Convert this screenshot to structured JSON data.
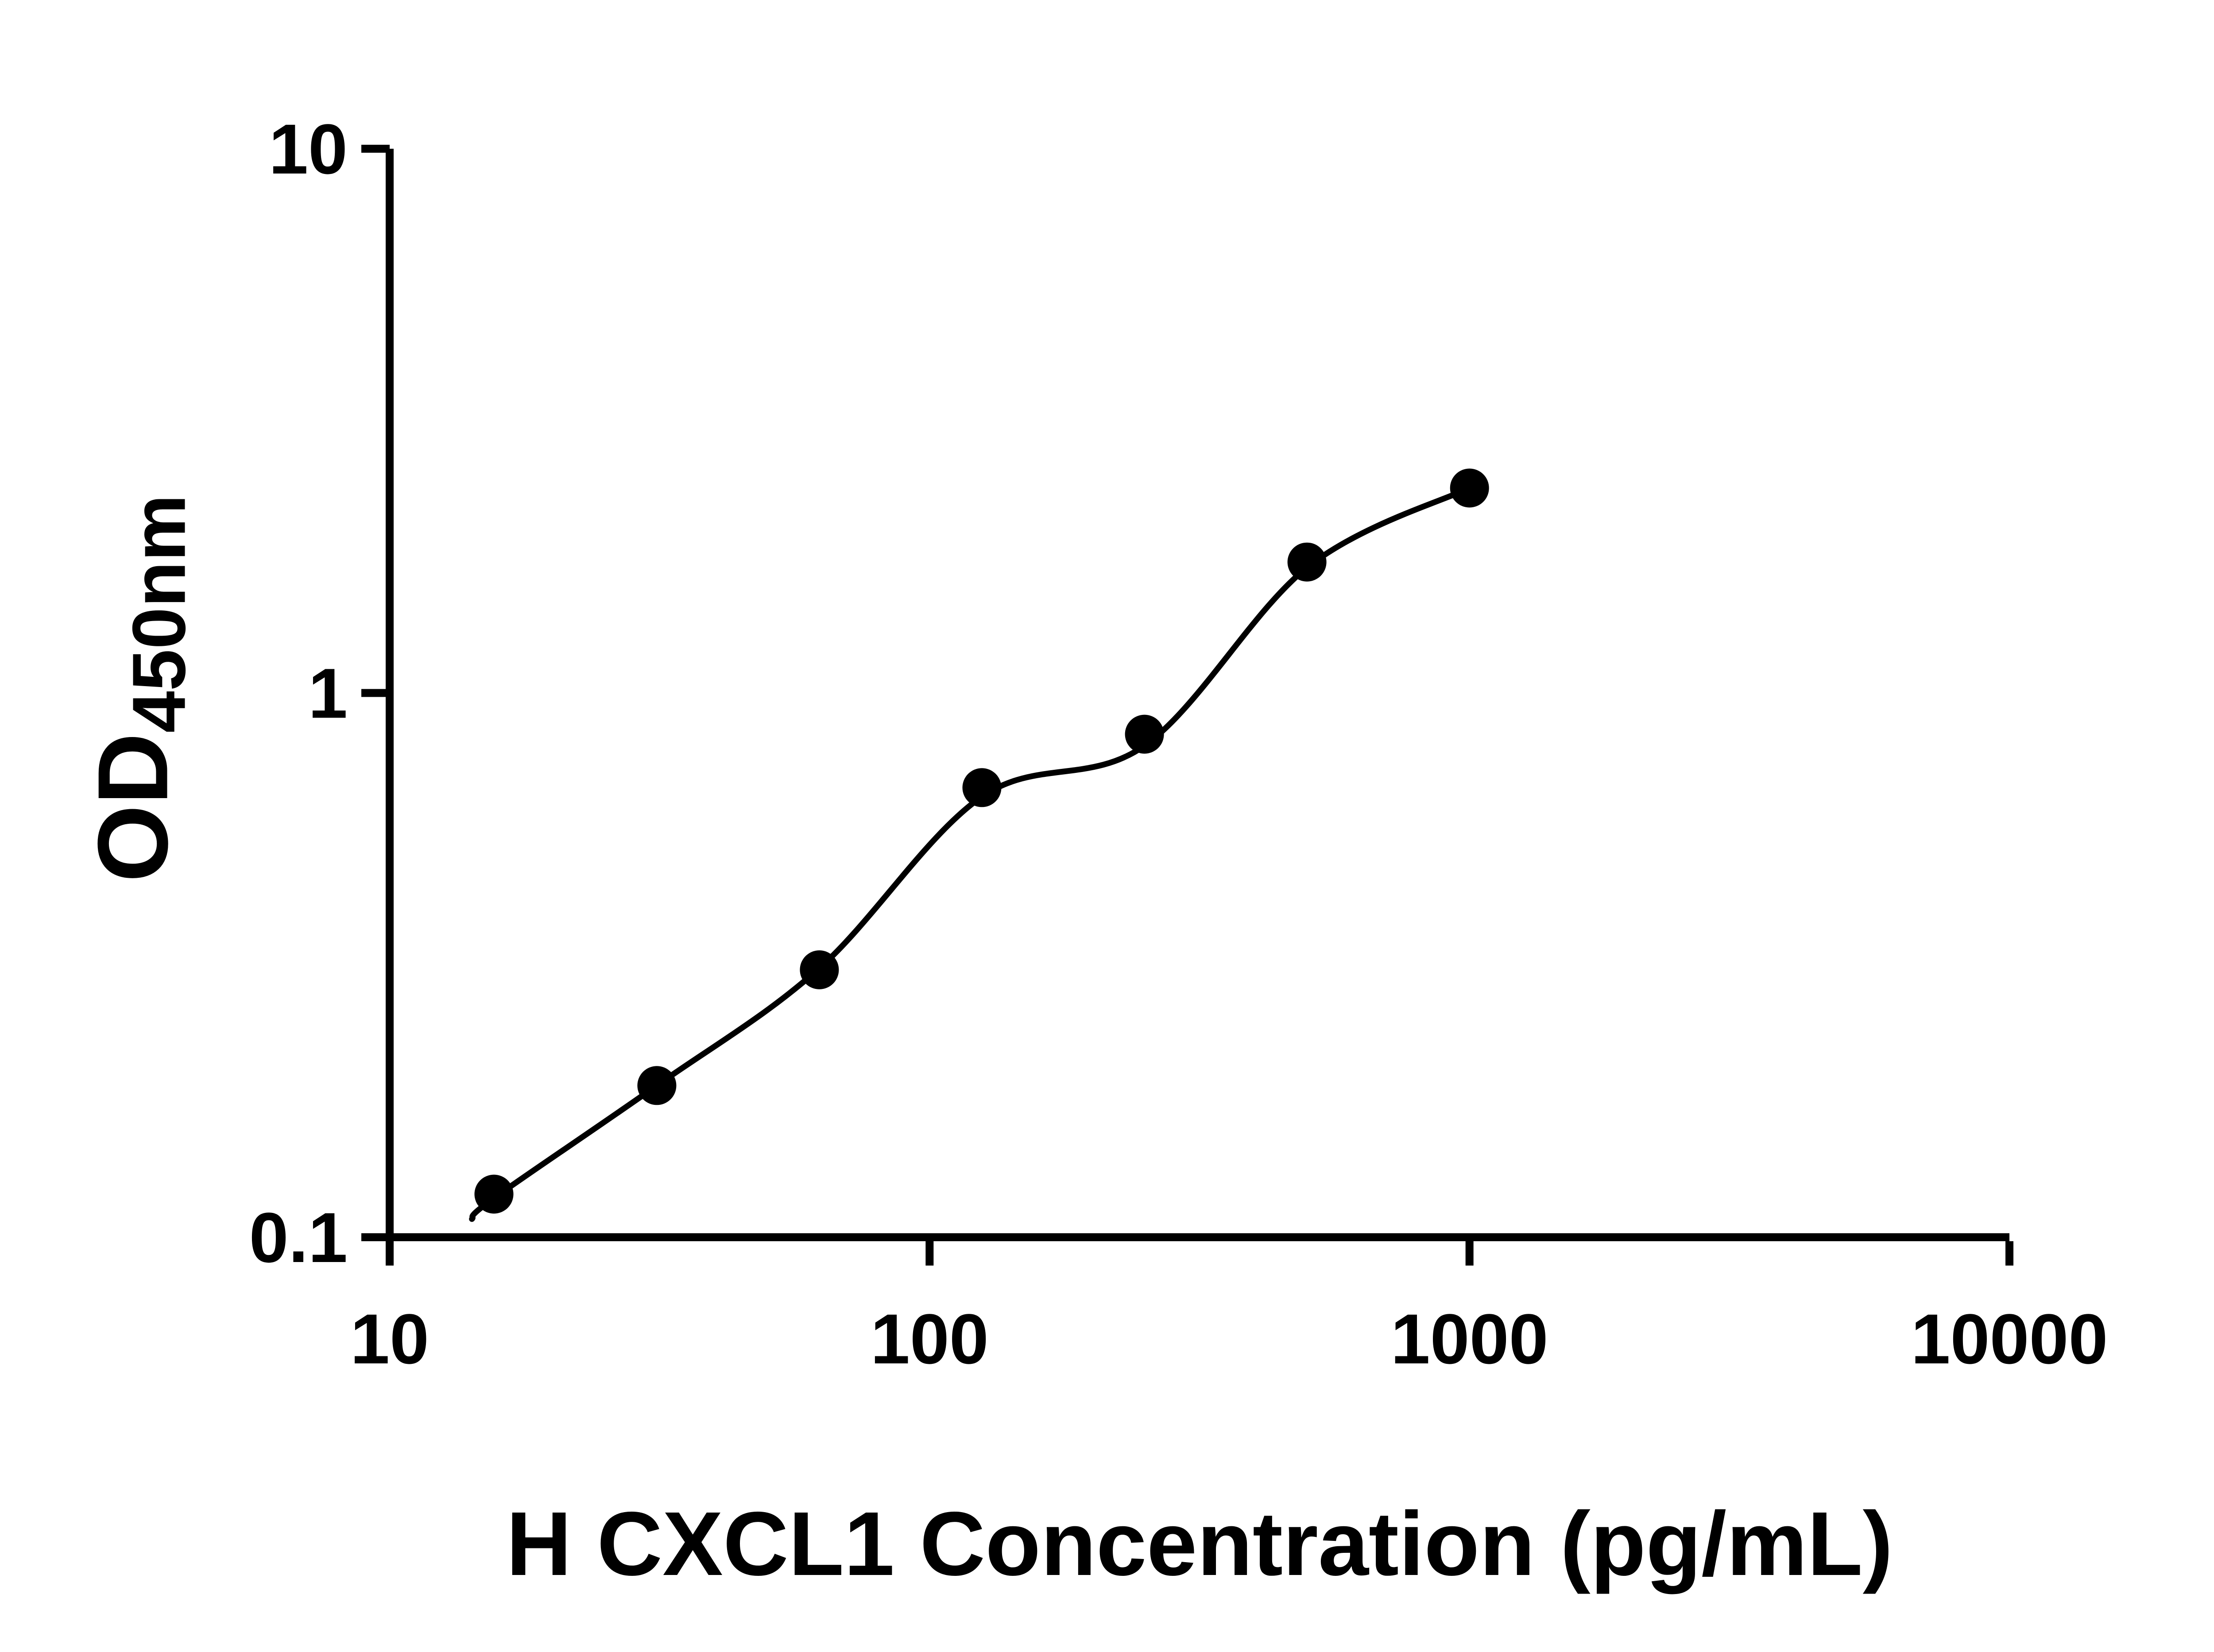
{
  "chart_data": {
    "type": "scatter",
    "title": "",
    "xlabel": "H CXCL1 Concentration (pg/mL)",
    "ylabel": "OD",
    "ylabel_subscript": "450nm",
    "x_scale": "log",
    "y_scale": "log",
    "xlim": [
      10,
      10000
    ],
    "ylim": [
      0.1,
      10
    ],
    "x_ticks": [
      10,
      100,
      1000,
      10000
    ],
    "x_tick_labels": [
      "10",
      "100",
      "1000",
      "10000"
    ],
    "y_ticks": [
      0.1,
      1,
      10
    ],
    "y_tick_labels": [
      "0.1",
      "1",
      "10"
    ],
    "grid": false,
    "legend": false,
    "marker_color": "#000000",
    "line_color": "#000000",
    "background_color": "#ffffff",
    "points": [
      {
        "x": 15.6,
        "y": 0.12
      },
      {
        "x": 31.25,
        "y": 0.19
      },
      {
        "x": 62.5,
        "y": 0.31
      },
      {
        "x": 125,
        "y": 0.67
      },
      {
        "x": 250,
        "y": 0.84
      },
      {
        "x": 500,
        "y": 1.74
      },
      {
        "x": 1000,
        "y": 2.38
      }
    ],
    "fit_curve_anchors": [
      {
        "x": 14.2,
        "y": 0.108
      },
      {
        "x": 15.6,
        "y": 0.118
      },
      {
        "x": 31.25,
        "y": 0.19
      },
      {
        "x": 62.5,
        "y": 0.312
      },
      {
        "x": 125,
        "y": 0.645
      },
      {
        "x": 250,
        "y": 0.8
      },
      {
        "x": 500,
        "y": 1.7
      },
      {
        "x": 1000,
        "y": 2.38
      }
    ]
  }
}
